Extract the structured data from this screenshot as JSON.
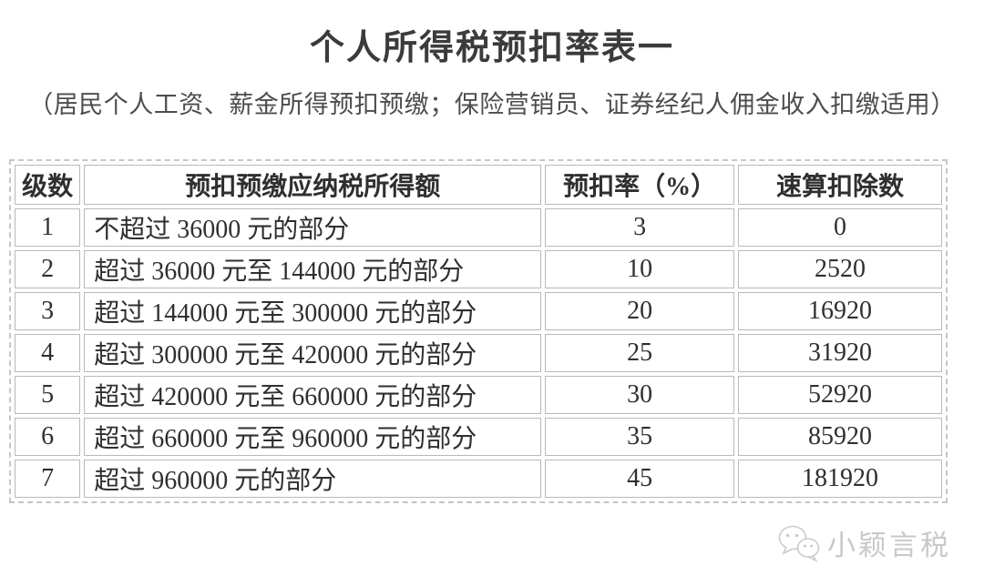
{
  "page": {
    "title": "个人所得税预扣率表一",
    "subtitle": "（居民个人工资、薪金所得预扣预缴；保险营销员、证券经纪人佣金收入扣缴适用）"
  },
  "table": {
    "headers": [
      "级数",
      "预扣预缴应纳税所得额",
      "预扣率（%）",
      "速算扣除数"
    ],
    "rows": [
      [
        "1",
        "不超过 36000 元的部分",
        "3",
        "0"
      ],
      [
        "2",
        "超过 36000 元至 144000 元的部分",
        "10",
        "2520"
      ],
      [
        "3",
        "超过 144000 元至 300000 元的部分",
        "20",
        "16920"
      ],
      [
        "4",
        "超过 300000 元至 420000 元的部分",
        "25",
        "31920"
      ],
      [
        "5",
        "超过 420000 元至 660000 元的部分",
        "30",
        "52920"
      ],
      [
        "6",
        "超过 660000 元至 960000 元的部分",
        "35",
        "85920"
      ],
      [
        "7",
        "超过 960000 元的部分",
        "45",
        "181920"
      ]
    ]
  },
  "watermark": {
    "label": "小颖言税",
    "icon": "wechat-icon"
  },
  "colors": {
    "title_text": "#3b3b3b",
    "subtitle_text": "#4d4d4d",
    "table_text": "#2f2f2f",
    "cell_border": "#b9b9b9",
    "outer_border": "#c6c6c6",
    "watermark": "#c9c9c9"
  }
}
